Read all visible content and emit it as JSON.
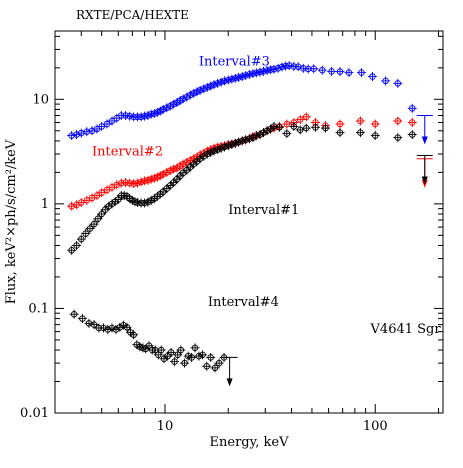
{
  "chart_data": {
    "type": "scatter",
    "top_title": "RXTE/PCA/HEXTE",
    "xlabel": "Energy, keV",
    "ylabel": "Flux, keV²×ph/s/cm²/keV",
    "x_scale": "log",
    "y_scale": "log",
    "xlim": [
      3.0,
      210.0
    ],
    "ylim": [
      0.01,
      45.0
    ],
    "x_tick_labels": [
      {
        "value": 10,
        "label": "10"
      },
      {
        "value": 100,
        "label": "100"
      }
    ],
    "y_tick_labels": [
      {
        "value": 0.01,
        "label": "0.01"
      },
      {
        "value": 0.1,
        "label": "0.1"
      },
      {
        "value": 1,
        "label": "1"
      },
      {
        "value": 10,
        "label": "10"
      }
    ],
    "annotations": [
      {
        "text": "Interval#3",
        "x": 14.5,
        "y": 21.0,
        "color": "#0000ff"
      },
      {
        "text": "Interval#2",
        "x": 4.5,
        "y": 2.9,
        "color": "#ff0000"
      },
      {
        "text": "Interval#1",
        "x": 20.0,
        "y": 0.8,
        "color": "#000000"
      },
      {
        "text": "Interval#4",
        "x": 16.0,
        "y": 0.105,
        "color": "#000000"
      },
      {
        "text": "V4641 Sgr",
        "x": 95.0,
        "y": 0.058,
        "color": "#000000"
      }
    ],
    "series": [
      {
        "color": "#0000ff",
        "points": [
          [
            3.6,
            4.5
          ],
          [
            3.8,
            4.6
          ],
          [
            4.0,
            4.75
          ],
          [
            4.25,
            4.9
          ],
          [
            4.5,
            5.0
          ],
          [
            4.75,
            5.2
          ],
          [
            5.0,
            5.5
          ],
          [
            5.3,
            5.8
          ],
          [
            5.6,
            6.2
          ],
          [
            5.9,
            6.6
          ],
          [
            6.2,
            7.0
          ],
          [
            6.5,
            7.0
          ],
          [
            6.8,
            6.9
          ],
          [
            7.1,
            6.8
          ],
          [
            7.4,
            6.8
          ],
          [
            7.7,
            6.8
          ],
          [
            8.0,
            6.9
          ],
          [
            8.3,
            7.0
          ],
          [
            8.6,
            7.2
          ],
          [
            8.9,
            7.3
          ],
          [
            9.2,
            7.5
          ],
          [
            9.5,
            7.7
          ],
          [
            9.8,
            8.0
          ],
          [
            10.2,
            8.3
          ],
          [
            10.6,
            8.6
          ],
          [
            11.0,
            9.0
          ],
          [
            11.4,
            9.3
          ],
          [
            11.8,
            9.7
          ],
          [
            12.2,
            10.1
          ],
          [
            12.7,
            10.5
          ],
          [
            13.2,
            11.0
          ],
          [
            13.7,
            11.4
          ],
          [
            14.2,
            11.8
          ],
          [
            14.7,
            12.2
          ],
          [
            15.3,
            12.6
          ],
          [
            15.9,
            13.0
          ],
          [
            16.5,
            13.4
          ],
          [
            17.1,
            13.8
          ],
          [
            17.8,
            14.2
          ],
          [
            18.5,
            14.6
          ],
          [
            19.2,
            15.0
          ],
          [
            20.0,
            15.3
          ],
          [
            20.8,
            15.6
          ],
          [
            21.6,
            15.9
          ],
          [
            22.4,
            16.2
          ],
          [
            23.3,
            16.5
          ],
          [
            24.2,
            16.9
          ],
          [
            25.2,
            17.3
          ],
          [
            26.2,
            17.6
          ],
          [
            27.2,
            17.9
          ],
          [
            28.3,
            18.2
          ],
          [
            29.4,
            18.5
          ],
          [
            30.6,
            18.9
          ],
          [
            31.8,
            19.2
          ],
          [
            33.0,
            19.4
          ],
          [
            34.5,
            19.8
          ],
          [
            36.0,
            20.4
          ],
          [
            37.5,
            20.8
          ],
          [
            39.0,
            21.0
          ],
          [
            41.0,
            20.6
          ],
          [
            43.0,
            20.5
          ],
          [
            45.5,
            19.8
          ],
          [
            48.0,
            19.5
          ],
          [
            51.0,
            19.6
          ],
          [
            56.0,
            19.0
          ],
          [
            62.0,
            18.5
          ],
          [
            68.0,
            18.4
          ],
          [
            75.0,
            18.0
          ],
          [
            86.0,
            18.0
          ],
          [
            97.0,
            16.5
          ],
          [
            112.0,
            15.0
          ],
          [
            128.0,
            14.2
          ],
          [
            150.0,
            8.2
          ]
        ],
        "upper_limits": [
          [
            172.0,
            7.0
          ]
        ]
      },
      {
        "color": "#ff0000",
        "points": [
          [
            3.6,
            0.95
          ],
          [
            3.8,
            0.98
          ],
          [
            4.0,
            1.03
          ],
          [
            4.25,
            1.08
          ],
          [
            4.5,
            1.14
          ],
          [
            4.75,
            1.2
          ],
          [
            5.0,
            1.28
          ],
          [
            5.3,
            1.36
          ],
          [
            5.6,
            1.44
          ],
          [
            5.9,
            1.52
          ],
          [
            6.2,
            1.58
          ],
          [
            6.5,
            1.6
          ],
          [
            6.8,
            1.58
          ],
          [
            7.1,
            1.56
          ],
          [
            7.4,
            1.58
          ],
          [
            7.7,
            1.62
          ],
          [
            8.0,
            1.66
          ],
          [
            8.3,
            1.68
          ],
          [
            8.6,
            1.72
          ],
          [
            8.9,
            1.76
          ],
          [
            9.2,
            1.8
          ],
          [
            9.5,
            1.86
          ],
          [
            9.8,
            1.92
          ],
          [
            10.2,
            2.0
          ],
          [
            10.6,
            2.08
          ],
          [
            11.0,
            2.15
          ],
          [
            11.4,
            2.2
          ],
          [
            11.8,
            2.3
          ],
          [
            12.2,
            2.4
          ],
          [
            12.7,
            2.5
          ],
          [
            13.2,
            2.6
          ],
          [
            13.7,
            2.7
          ],
          [
            14.2,
            2.8
          ],
          [
            14.7,
            2.95
          ],
          [
            15.3,
            3.05
          ],
          [
            15.9,
            3.2
          ],
          [
            16.5,
            3.3
          ],
          [
            17.1,
            3.4
          ],
          [
            17.8,
            3.5
          ],
          [
            18.5,
            3.55
          ],
          [
            19.2,
            3.6
          ],
          [
            20.0,
            3.7
          ],
          [
            20.8,
            3.75
          ],
          [
            21.6,
            3.8
          ],
          [
            22.4,
            3.9
          ],
          [
            23.3,
            4.0
          ],
          [
            24.2,
            4.1
          ],
          [
            25.2,
            4.2
          ],
          [
            26.2,
            4.4
          ],
          [
            27.2,
            4.5
          ],
          [
            28.3,
            4.6
          ],
          [
            29.4,
            4.8
          ],
          [
            30.6,
            5.0
          ],
          [
            31.8,
            5.2
          ],
          [
            33.0,
            5.3
          ],
          [
            35.0,
            5.5
          ],
          [
            38.0,
            5.8
          ],
          [
            41.0,
            6.0
          ],
          [
            44.0,
            6.4
          ],
          [
            47.0,
            6.8
          ],
          [
            52.0,
            6.0
          ],
          [
            58.0,
            5.6
          ],
          [
            68.0,
            5.8
          ],
          [
            85.0,
            6.2
          ],
          [
            100.0,
            5.8
          ],
          [
            128.0,
            6.2
          ],
          [
            150.0,
            6.0
          ]
        ],
        "upper_limits": [
          [
            172.0,
            2.7
          ]
        ]
      },
      {
        "color": "#000000",
        "points": [
          [
            3.6,
            0.36
          ],
          [
            3.8,
            0.4
          ],
          [
            4.0,
            0.46
          ],
          [
            4.2,
            0.52
          ],
          [
            4.4,
            0.58
          ],
          [
            4.6,
            0.64
          ],
          [
            4.8,
            0.72
          ],
          [
            5.0,
            0.8
          ],
          [
            5.2,
            0.88
          ],
          [
            5.4,
            0.95
          ],
          [
            5.6,
            1.0
          ],
          [
            5.8,
            1.05
          ],
          [
            6.0,
            1.1
          ],
          [
            6.2,
            1.2
          ],
          [
            6.4,
            1.2
          ],
          [
            6.6,
            1.18
          ],
          [
            6.8,
            1.12
          ],
          [
            7.0,
            1.08
          ],
          [
            7.2,
            1.05
          ],
          [
            7.4,
            1.03
          ],
          [
            7.7,
            1.02
          ],
          [
            8.0,
            1.02
          ],
          [
            8.3,
            1.04
          ],
          [
            8.6,
            1.08
          ],
          [
            8.9,
            1.12
          ],
          [
            9.2,
            1.18
          ],
          [
            9.5,
            1.24
          ],
          [
            9.8,
            1.3
          ],
          [
            10.2,
            1.4
          ],
          [
            10.6,
            1.5
          ],
          [
            11.0,
            1.6
          ],
          [
            11.4,
            1.72
          ],
          [
            11.8,
            1.85
          ],
          [
            12.2,
            1.98
          ],
          [
            12.7,
            2.1
          ],
          [
            13.2,
            2.25
          ],
          [
            13.7,
            2.4
          ],
          [
            14.2,
            2.55
          ],
          [
            14.7,
            2.7
          ],
          [
            15.3,
            2.85
          ],
          [
            15.9,
            3.0
          ],
          [
            16.5,
            3.1
          ],
          [
            17.1,
            3.2
          ],
          [
            17.8,
            3.3
          ],
          [
            18.5,
            3.4
          ],
          [
            19.2,
            3.5
          ],
          [
            20.0,
            3.6
          ],
          [
            20.8,
            3.7
          ],
          [
            21.6,
            3.8
          ],
          [
            22.4,
            3.9
          ],
          [
            23.3,
            4.0
          ],
          [
            24.2,
            4.1
          ],
          [
            25.2,
            4.2
          ],
          [
            26.2,
            4.3
          ],
          [
            27.2,
            4.5
          ],
          [
            28.3,
            4.6
          ],
          [
            29.4,
            4.8
          ],
          [
            30.6,
            5.0
          ],
          [
            31.8,
            5.2
          ],
          [
            33.0,
            5.5
          ],
          [
            35.0,
            5.4
          ],
          [
            38.0,
            4.7
          ],
          [
            41.0,
            5.5
          ],
          [
            44.0,
            5.1
          ],
          [
            47.0,
            5.3
          ],
          [
            52.0,
            5.4
          ],
          [
            58.0,
            5.3
          ],
          [
            68.0,
            4.8
          ],
          [
            85.0,
            4.8
          ],
          [
            100.0,
            4.5
          ],
          [
            128.0,
            4.3
          ],
          [
            150.0,
            4.6
          ]
        ],
        "upper_limits": [
          [
            172.0,
            2.9
          ]
        ]
      },
      {
        "color": "#000000",
        "points": [
          [
            3.7,
            0.088
          ],
          [
            4.05,
            0.08
          ],
          [
            4.35,
            0.072
          ],
          [
            4.6,
            0.07
          ],
          [
            4.85,
            0.065
          ],
          [
            5.1,
            0.065
          ],
          [
            5.35,
            0.063
          ],
          [
            5.6,
            0.065
          ],
          [
            5.85,
            0.063
          ],
          [
            6.1,
            0.066
          ],
          [
            6.35,
            0.069
          ],
          [
            6.6,
            0.066
          ],
          [
            6.85,
            0.059
          ],
          [
            7.1,
            0.056
          ],
          [
            7.35,
            0.045
          ],
          [
            7.6,
            0.043
          ],
          [
            7.85,
            0.042
          ],
          [
            8.1,
            0.041
          ],
          [
            8.4,
            0.044
          ],
          [
            8.7,
            0.04
          ],
          [
            9.0,
            0.04
          ],
          [
            9.3,
            0.036
          ],
          [
            9.6,
            0.04
          ],
          [
            9.9,
            0.033
          ],
          [
            10.3,
            0.035
          ],
          [
            10.7,
            0.038
          ],
          [
            11.1,
            0.031
          ],
          [
            11.5,
            0.036
          ],
          [
            11.9,
            0.04
          ],
          [
            12.4,
            0.03
          ],
          [
            12.9,
            0.035
          ],
          [
            13.4,
            0.034
          ],
          [
            13.9,
            0.042
          ],
          [
            14.5,
            0.035
          ],
          [
            15.1,
            0.036
          ],
          [
            15.8,
            0.028
          ],
          [
            16.5,
            0.034
          ],
          [
            17.3,
            0.027
          ],
          [
            18.1,
            0.03
          ],
          [
            19.1,
            0.034
          ]
        ],
        "upper_limits": [
          [
            20.3,
            0.034
          ]
        ]
      }
    ]
  }
}
